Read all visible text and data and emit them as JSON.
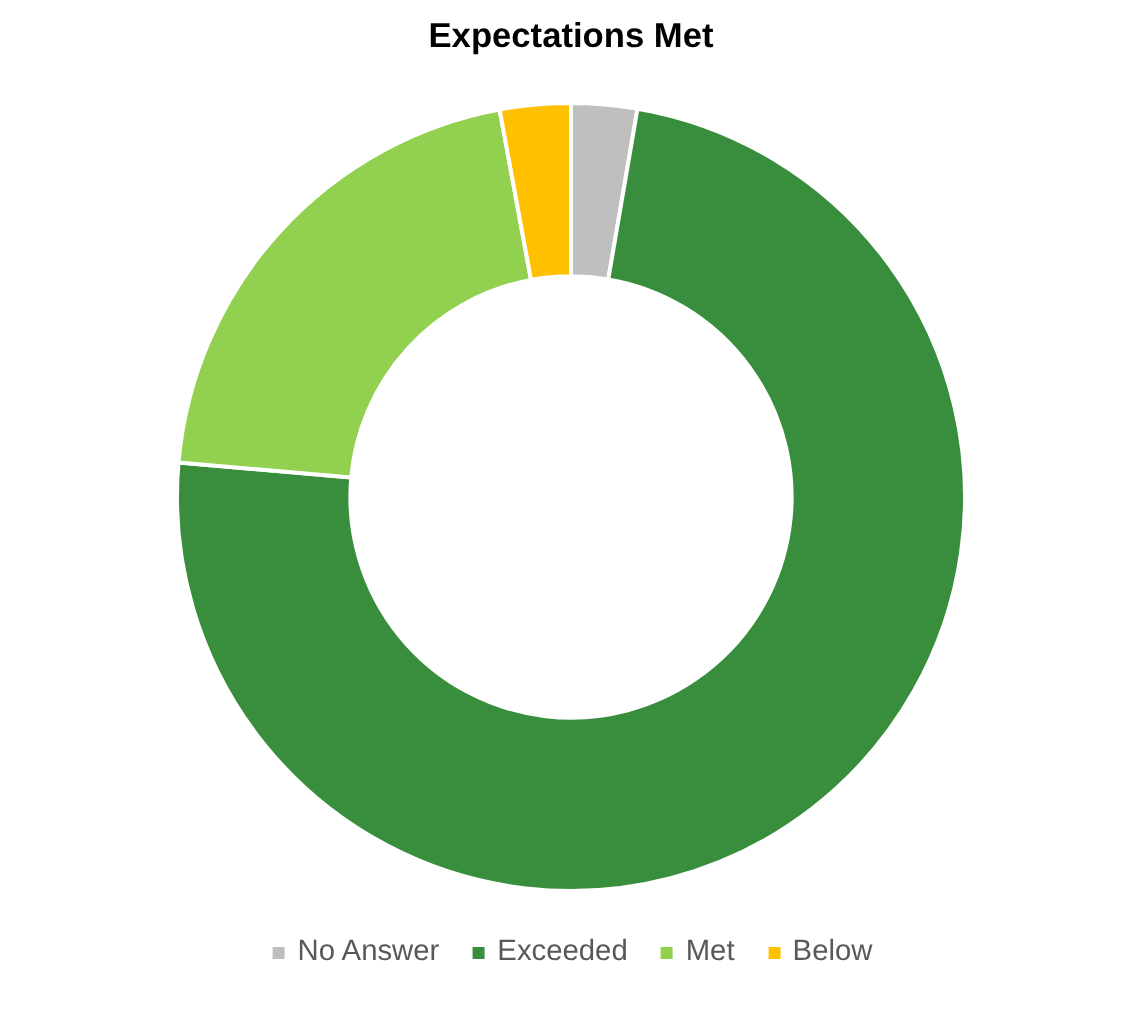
{
  "chart_data": {
    "type": "donut",
    "title": "Expectations Met",
    "categories": [
      "No Answer",
      "Exceeded",
      "Met",
      "Below"
    ],
    "values": [
      2.7,
      73.7,
      20.7,
      2.9
    ],
    "colors": [
      "#bfbfbf",
      "#388e3c",
      "#92d050",
      "#ffc000"
    ],
    "legend": "bottom"
  }
}
